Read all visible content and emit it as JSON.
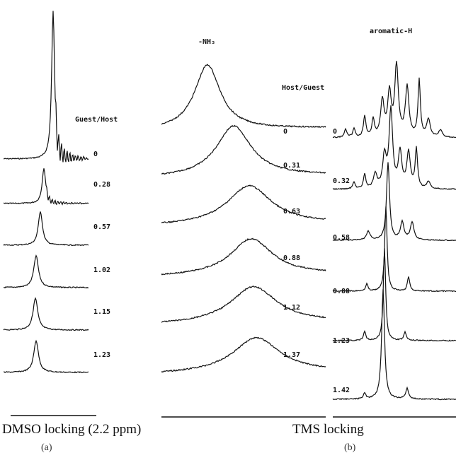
{
  "panel_a": {
    "header": "Guest/Host",
    "ratios": [
      "0",
      "0.28",
      "0.57",
      "1.02",
      "1.15",
      "1.23"
    ],
    "caption": "DMSO locking (2.2 ppm)",
    "letter": "(a)"
  },
  "panel_b_left": {
    "peak_label": "-NH₃",
    "header": "Host/Guest",
    "ratios": [
      "0",
      "0.31",
      "0.63",
      "0.88",
      "1.12",
      "1.37"
    ]
  },
  "panel_b_right": {
    "peak_label": "aromatic-H",
    "ratios": [
      "0",
      "0.32",
      "0.58",
      "0.88",
      "1.23",
      "1.42"
    ]
  },
  "panel_b": {
    "caption": "TMS locking",
    "letter": "(b)"
  }
}
